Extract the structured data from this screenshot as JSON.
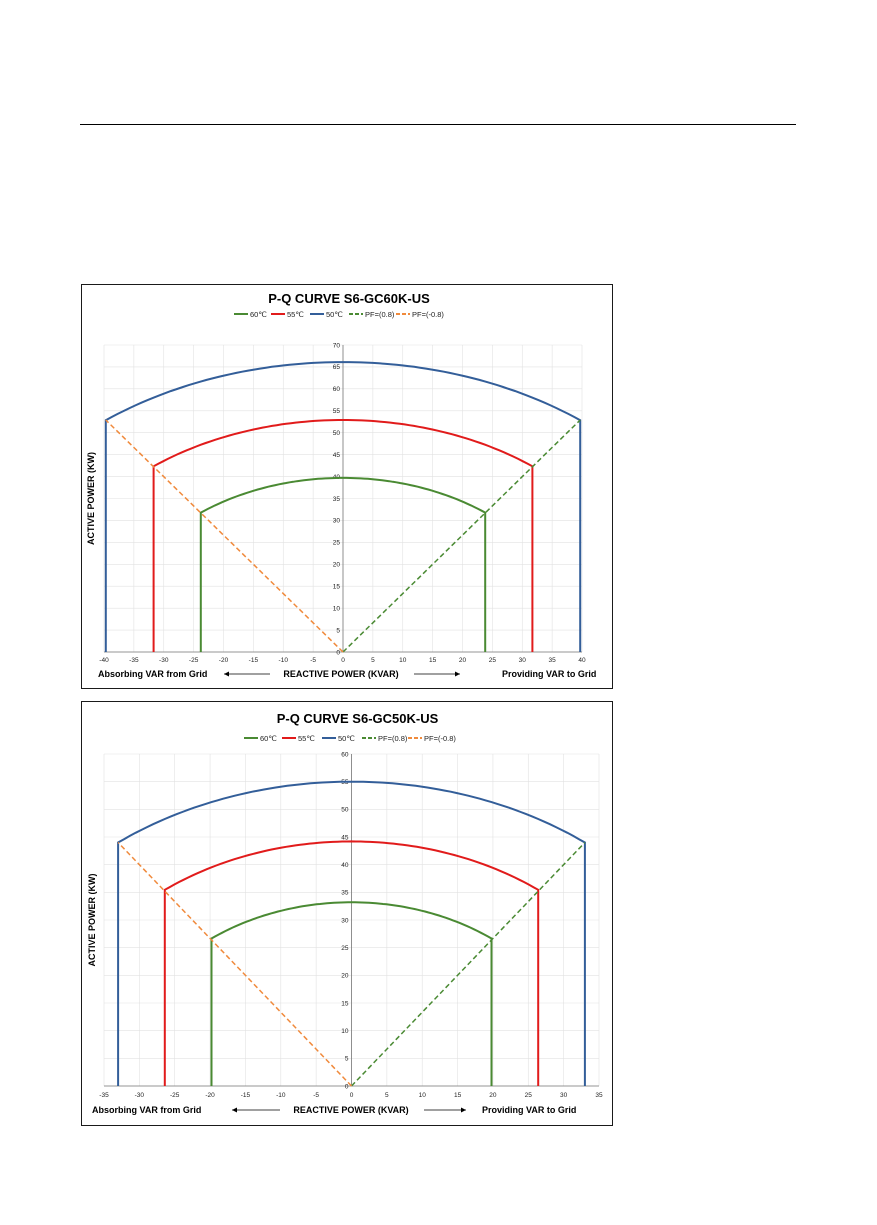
{
  "colors": {
    "c60": "#4a8a33",
    "c55": "#e11b1b",
    "c50": "#335e99",
    "pf_pos": "#4a8a33",
    "pf_neg": "#f08a3c",
    "grid": "#e2e2e2"
  },
  "chart_data": [
    {
      "type": "line",
      "title": "P-Q CURVE S6-GC60K-US",
      "xlabel": "REACTIVE POWER (KVAR)",
      "ylabel": "ACTIVE POWER  (KW)",
      "note_left": "Absorbing VAR from Grid",
      "note_right": "Providing VAR to Grid",
      "xlim": [
        -40,
        40
      ],
      "ylim": [
        0,
        70
      ],
      "xticks": [
        -40,
        -35,
        -30,
        -25,
        -20,
        -15,
        -10,
        -5,
        0,
        5,
        10,
        15,
        20,
        25,
        30,
        35,
        40
      ],
      "yticks": [
        0,
        5,
        10,
        15,
        20,
        25,
        30,
        35,
        40,
        45,
        50,
        55,
        60,
        65,
        70
      ],
      "grid": true,
      "legend_position": "top",
      "series": [
        {
          "name": "60℃",
          "color_key": "c60",
          "dash": false,
          "radius": 39.7,
          "qlim": 23.8
        },
        {
          "name": "55℃",
          "color_key": "c55",
          "dash": false,
          "radius": 52.9,
          "qlim": 31.7
        },
        {
          "name": "50℃",
          "color_key": "c50",
          "dash": false,
          "radius": 66.1,
          "qlim": 39.7
        },
        {
          "name": "PF=(0.8)",
          "color_key": "pf_pos",
          "dash": true,
          "points": [
            [
              0,
              0
            ],
            [
              39.7,
              52.9
            ]
          ]
        },
        {
          "name": "PF=(-0.8)",
          "color_key": "pf_neg",
          "dash": true,
          "points": [
            [
              0,
              0
            ],
            [
              -39.7,
              52.9
            ]
          ]
        }
      ]
    },
    {
      "type": "line",
      "title": "P-Q CURVE S6-GC50K-US",
      "xlabel": "REACTIVE POWER (KVAR)",
      "ylabel": "ACTIVE POWER  (KW)",
      "note_left": "Absorbing VAR from Grid",
      "note_right": "Providing VAR to Grid",
      "xlim": [
        -35,
        35
      ],
      "ylim": [
        0,
        60
      ],
      "xticks": [
        -35,
        -30,
        -25,
        -20,
        -15,
        -10,
        -5,
        0,
        5,
        10,
        15,
        20,
        25,
        30,
        35
      ],
      "yticks": [
        0,
        5,
        10,
        15,
        20,
        25,
        30,
        35,
        40,
        45,
        50,
        55,
        60
      ],
      "grid": true,
      "legend_position": "top",
      "series": [
        {
          "name": "60℃",
          "color_key": "c60",
          "dash": false,
          "radius": 33.2,
          "qlim": 19.8
        },
        {
          "name": "55℃",
          "color_key": "c55",
          "dash": false,
          "radius": 44.2,
          "qlim": 26.4
        },
        {
          "name": "50℃",
          "color_key": "c50",
          "dash": false,
          "radius": 55.0,
          "qlim": 33.0
        },
        {
          "name": "PF=(0.8)",
          "color_key": "pf_pos",
          "dash": true,
          "points": [
            [
              0,
              0
            ],
            [
              33.0,
              44.0
            ]
          ]
        },
        {
          "name": "PF=(-0.8)",
          "color_key": "pf_neg",
          "dash": true,
          "points": [
            [
              0,
              0
            ],
            [
              -33.0,
              44.0
            ]
          ]
        }
      ]
    }
  ]
}
